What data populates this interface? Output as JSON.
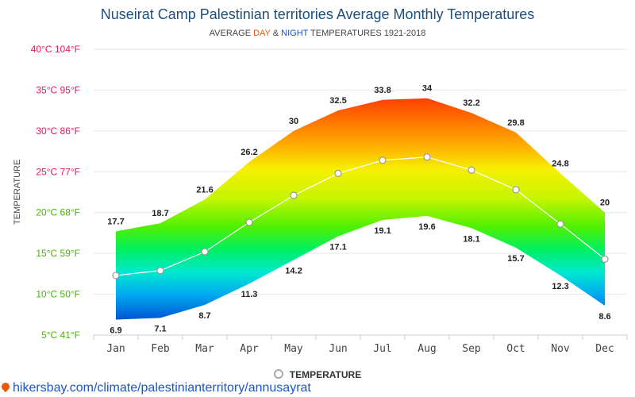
{
  "header": {
    "title": "Nuseirat Camp Palestinian territories Average Monthly Temperatures",
    "subtitle_prefix": "AVERAGE ",
    "subtitle_day": "DAY",
    "subtitle_amp": " & ",
    "subtitle_night": "NIGHT",
    "subtitle_suffix": " TEMPERATURES 1921-2018"
  },
  "legend": {
    "label": "TEMPERATURE"
  },
  "source": {
    "text": "hikersbay.com/climate/palestinianterritory/annusayrat"
  },
  "colors": {
    "tick_hot": "#e8175d",
    "tick_cool": "#44b800",
    "avg_line": "#ffffff",
    "grid": "#e6e6e6"
  },
  "chart_data": {
    "type": "area",
    "categories": [
      "Jan",
      "Feb",
      "Mar",
      "Apr",
      "May",
      "Jun",
      "Jul",
      "Aug",
      "Sep",
      "Oct",
      "Nov",
      "Dec"
    ],
    "ylabel": "TEMPERATURE",
    "ylim": [
      5,
      40
    ],
    "yticks": [
      {
        "value": 40,
        "label": "40°C 104°F"
      },
      {
        "value": 35,
        "label": "35°C 95°F"
      },
      {
        "value": 30,
        "label": "30°C 86°F"
      },
      {
        "value": 25,
        "label": "25°C 77°F"
      },
      {
        "value": 20,
        "label": "20°C 68°F"
      },
      {
        "value": 15,
        "label": "15°C 59°F"
      },
      {
        "value": 10,
        "label": "10°C 50°F"
      },
      {
        "value": 5,
        "label": "5°C 41°F"
      }
    ],
    "series": [
      {
        "name": "DAY",
        "values": [
          17.7,
          18.7,
          21.6,
          26.2,
          30,
          32.5,
          33.8,
          34,
          32.2,
          29.8,
          24.8,
          20
        ]
      },
      {
        "name": "NIGHT",
        "values": [
          6.9,
          7.1,
          8.7,
          11.3,
          14.2,
          17.1,
          19.1,
          19.6,
          18.1,
          15.7,
          12.3,
          8.6
        ]
      },
      {
        "name": "TEMPERATURE",
        "values": [
          12.3,
          12.9,
          15.2,
          18.8,
          22.1,
          24.8,
          26.4,
          26.8,
          25.2,
          22.8,
          18.6,
          14.3
        ]
      }
    ],
    "grid": true,
    "legend": "bottom"
  }
}
